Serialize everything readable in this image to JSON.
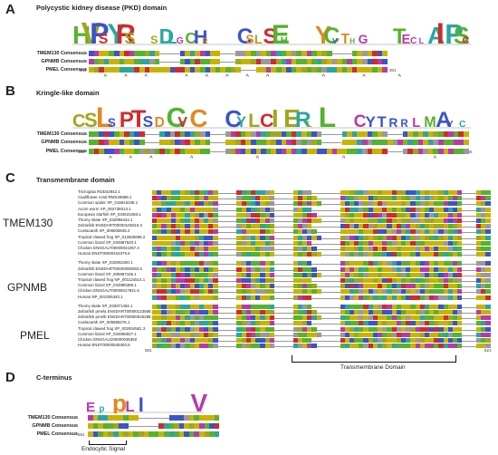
{
  "panels": {
    "a": {
      "letter": "A",
      "title": "Polycystic kidney disease (PKD) domain",
      "rows": [
        "TMEM130 Consensus",
        "GPNMB Consensus",
        "PMEL Consensus"
      ],
      "start": "244",
      "end": "301",
      "logo_text": "HVPSYRS  SDLGCHR   CSLSEH   YCVTHG   TECLAIPSC"
    },
    "b": {
      "letter": "B",
      "title": "Kringle-like domain",
      "rows": [
        "TMEM130 Consensus",
        "GPNMB Consensus",
        "PMEL Consensus"
      ],
      "start": "516",
      "end": "566",
      "logo_text": "CSLSPTSDCVC  CYLCIERLL  CYTRRLMAYC"
    },
    "c": {
      "letter": "C",
      "title": "Transmembrane domain",
      "groups": [
        {
          "name": "TMEM130",
          "species": [
            "Trichoplax RDD42942.1",
            "Cauliflower coral RMX49588.1",
            "Common spider XP_015915338.1",
            "Acorn worm XP_002736013.1",
            "European starfish XP_033631068.1",
            "Thorny skate XP_032896444.1",
            "Zebrafish ENSDART00000106019.3",
            "Coelacanth XP_006006848.2",
            "Tropical clawed frog XP_012826698.2",
            "Common lizard XP_034987520.1",
            "Chicken ENSGALT00000041067.4",
            "Human ENST00000416379.6"
          ]
        },
        {
          "name": "GPNMB",
          "species": [
            "Thorny skate XP_032902250.1",
            "Zebrafish ENSDART00000090083.6",
            "Common lizard XP_005997106.1",
            "Tropical clawed frog NP_001124514.1",
            "Common lizard XP_034985389.1",
            "Chicken ENSGALT00000017821.6",
            "Human NP_001005340.1"
          ]
        },
        {
          "name": "PMEL",
          "species": [
            "Thorny skate XP_032871492.1",
            "Zebrafish pmela ENSDART00000123568.4",
            "Zebrafish pmelb ENSDART00000046288.7",
            "Coelacanth XP_005988276.1",
            "Tropical clawed frog XP_002934581.3",
            "Common lizard XP_034956927.1",
            "Chicken ENSGALG00000035350",
            "Human ENST00000548493.5"
          ]
        }
      ],
      "start": "581",
      "end": "621",
      "tm_label": "Transmembrane Domain"
    },
    "d": {
      "letter": "D",
      "title": "C-terminus",
      "rows": [
        "TMEM130 Consensus",
        "GPNMB Consensus",
        "PMEL Consensus"
      ],
      "start": "651",
      "end": "681",
      "logo_text": "EppLI   V",
      "endo_label": "Endocytic Signal"
    }
  },
  "colors": {
    "yellow": "#c8b400",
    "green": "#55b32d",
    "blue": "#3a54c9",
    "magenta": "#b83aa8",
    "red": "#d02b2b",
    "teal": "#2aa6a0",
    "gray": "#9a9a9a",
    "olive": "#9fa81a"
  }
}
